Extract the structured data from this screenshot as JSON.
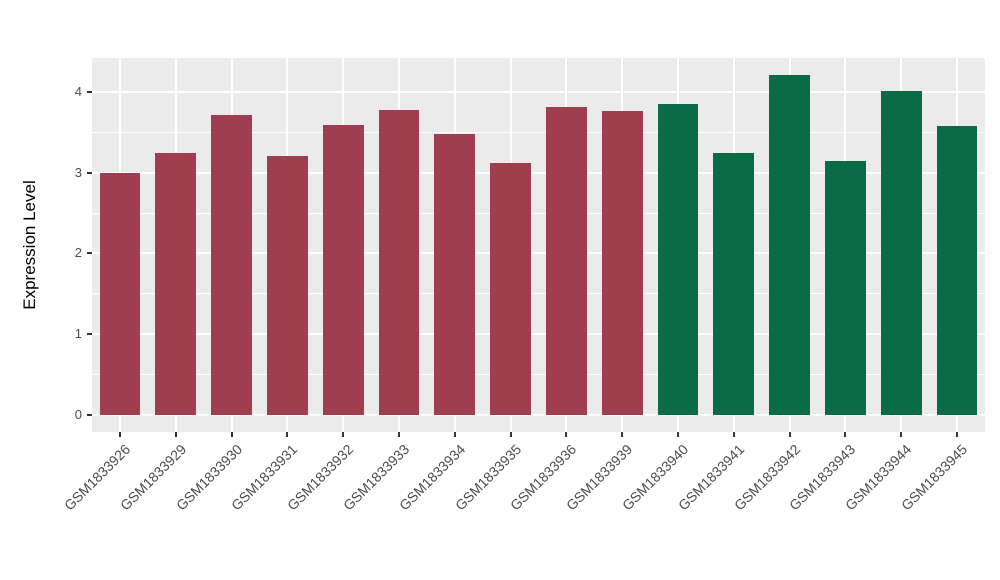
{
  "chart_data": {
    "type": "bar",
    "title": "",
    "xlabel": "",
    "ylabel": "Expression Level",
    "categories": [
      "GSM1833926",
      "GSM1833929",
      "GSM1833930",
      "GSM1833931",
      "GSM1833932",
      "GSM1833933",
      "GSM1833934",
      "GSM1833935",
      "GSM1833936",
      "GSM1833939",
      "GSM1833940",
      "GSM1833941",
      "GSM1833942",
      "GSM1833943",
      "GSM1833944",
      "GSM1833945"
    ],
    "values": [
      3.0,
      3.24,
      3.71,
      3.21,
      3.59,
      3.78,
      3.48,
      3.12,
      3.81,
      3.77,
      3.85,
      3.25,
      4.21,
      3.14,
      4.01,
      3.58
    ],
    "colors": [
      "#9E3E4F",
      "#9E3E4F",
      "#9E3E4F",
      "#9E3E4F",
      "#9E3E4F",
      "#9E3E4F",
      "#9E3E4F",
      "#9E3E4F",
      "#9E3E4F",
      "#9E3E4F",
      "#0B6B47",
      "#0B6B47",
      "#0B6B47",
      "#0B6B47",
      "#0B6B47",
      "#0B6B47"
    ],
    "yticks": [
      0,
      1,
      2,
      3,
      4
    ],
    "ytick_labels": [
      "0",
      "1",
      "2",
      "3",
      "4"
    ],
    "yticks_minor": [
      0.5,
      1.5,
      2.5,
      3.5
    ],
    "ylim": [
      -0.21,
      4.42
    ],
    "panel_background": "#EBEBEB",
    "grid_color": "#FFFFFF",
    "legend": "none",
    "bar_width_fraction": 0.73
  }
}
